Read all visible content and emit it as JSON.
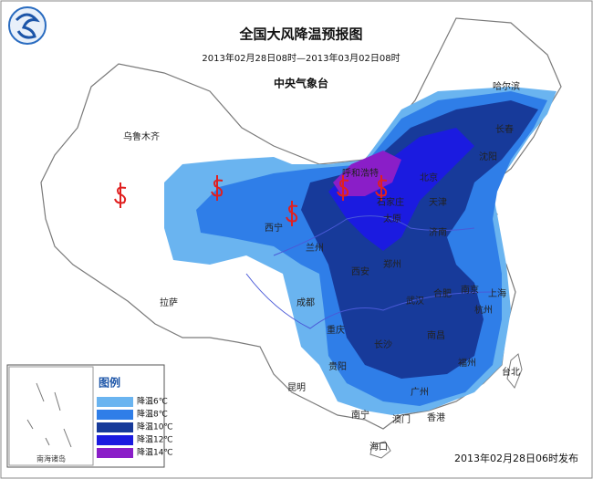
{
  "header": {
    "title": "全国大风降温预报图",
    "period": "2013年02月28日08时—2013年03月02日08时",
    "issuer": "中央气象台"
  },
  "cities": [
    "乌鲁木齐",
    "哈尔滨",
    "长春",
    "沈阳",
    "北京",
    "呼和浩特",
    "石家庄",
    "天津",
    "太原",
    "济南",
    "西宁",
    "兰州",
    "西安",
    "郑州",
    "拉萨",
    "成都",
    "武汉",
    "合肥",
    "南京",
    "上海",
    "杭州",
    "重庆",
    "长沙",
    "南昌",
    "贵阳",
    "福州",
    "昆明",
    "南宁",
    "广州",
    "澳门",
    "香港",
    "海口",
    "台北"
  ],
  "legend": {
    "title": "图例",
    "items": [
      {
        "label": "降温6℃",
        "color": "#6ab4f0"
      },
      {
        "label": "降温8℃",
        "color": "#2f7ee8"
      },
      {
        "label": "降温10℃",
        "color": "#173a9a"
      },
      {
        "label": "降温12℃",
        "color": "#1b1be0"
      },
      {
        "label": "降温14℃",
        "color": "#8a1ec8"
      }
    ]
  },
  "inset": "南海诸岛",
  "footer": "2013年02月28日06时发布"
}
